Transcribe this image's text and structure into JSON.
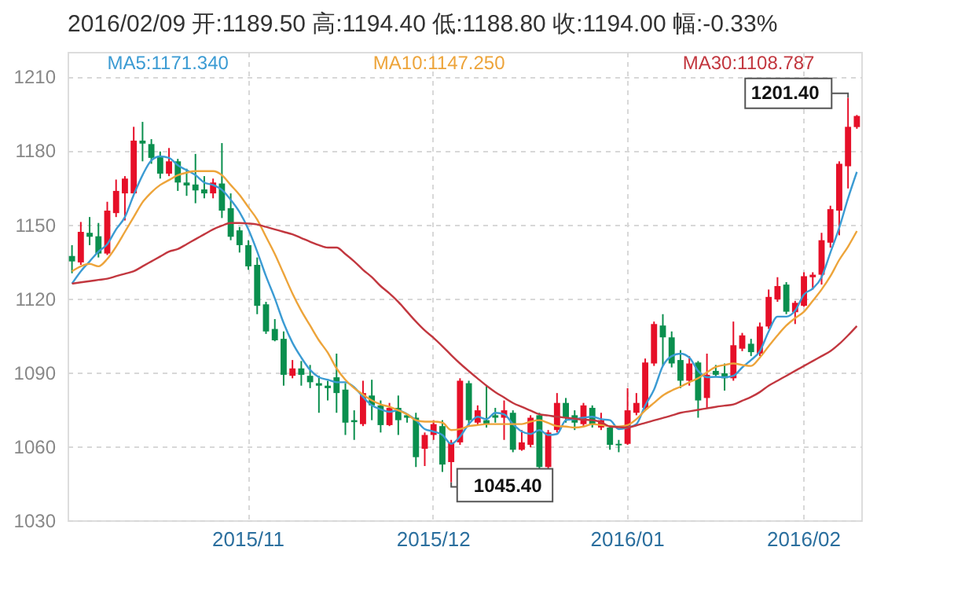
{
  "chart_data": {
    "type": "candlestick",
    "title": "2016/02/09 开:1189.50 高:1194.40 低:1188.80 收:1194.00 幅:-0.33%",
    "categories": [
      null,
      null,
      null,
      null,
      null,
      null,
      null,
      null,
      null,
      null,
      null,
      null,
      null,
      null,
      null,
      null,
      null,
      null,
      null,
      null,
      "2015/11",
      null,
      null,
      null,
      null,
      null,
      null,
      null,
      null,
      null,
      null,
      null,
      null,
      null,
      null,
      null,
      null,
      null,
      null,
      null,
      null,
      "2015/12",
      null,
      null,
      null,
      null,
      null,
      null,
      null,
      null,
      null,
      null,
      null,
      null,
      null,
      null,
      null,
      null,
      null,
      null,
      null,
      null,
      null,
      "2016/01",
      null,
      null,
      null,
      null,
      null,
      null,
      null,
      null,
      null,
      null,
      null,
      null,
      null,
      null,
      null,
      null,
      null,
      null,
      null,
      "2016/02",
      null,
      null,
      null,
      null,
      null,
      null
    ],
    "ohlc": [
      [
        1137.2,
        1141.6,
        1130.2,
        1135.0
      ],
      [
        1134.6,
        1151.0,
        1133.6,
        1147.0
      ],
      [
        1146.6,
        1153.0,
        1141.6,
        1145.0
      ],
      [
        1145.2,
        1150.6,
        1136.6,
        1138.2
      ],
      [
        1138.2,
        1159.2,
        1137.6,
        1155.6
      ],
      [
        1154.6,
        1168.2,
        1153.0,
        1163.6
      ],
      [
        1162.6,
        1169.6,
        1151.6,
        1168.6
      ],
      [
        1162.6,
        1189.6,
        1162.6,
        1184.0
      ],
      [
        1184.0,
        1191.6,
        1175.6,
        1182.8
      ],
      [
        1182.6,
        1184.6,
        1174.6,
        1177.0
      ],
      [
        1177.6,
        1179.6,
        1168.6,
        1170.6
      ],
      [
        1170.6,
        1181.0,
        1169.6,
        1175.6
      ],
      [
        1175.6,
        1176.6,
        1163.6,
        1167.0
      ],
      [
        1167.0,
        1172.6,
        1161.6,
        1165.8
      ],
      [
        1166.2,
        1178.6,
        1158.6,
        1163.8
      ],
      [
        1164.2,
        1169.6,
        1160.6,
        1162.6
      ],
      [
        1162.6,
        1168.6,
        1160.6,
        1167.0
      ],
      [
        1166.6,
        1183.0,
        1152.6,
        1155.6
      ],
      [
        1156.6,
        1162.6,
        1143.6,
        1145.0
      ],
      [
        1147.6,
        1149.0,
        1138.6,
        1141.6
      ],
      [
        1141.6,
        1143.6,
        1131.6,
        1133.0
      ],
      [
        1133.6,
        1136.6,
        1113.6,
        1117.0
      ],
      [
        1117.6,
        1118.6,
        1105.6,
        1106.6
      ],
      [
        1107.6,
        1111.6,
        1102.6,
        1103.0
      ],
      [
        1103.6,
        1106.6,
        1084.6,
        1089.0
      ],
      [
        1088.6,
        1095.0,
        1087.6,
        1091.6
      ],
      [
        1091.6,
        1094.6,
        1084.6,
        1089.0
      ],
      [
        1088.6,
        1093.0,
        1083.6,
        1086.0
      ],
      [
        1085.6,
        1088.6,
        1073.6,
        1084.6
      ],
      [
        1084.6,
        1086.6,
        1078.6,
        1083.6
      ],
      [
        1088.0,
        1097.6,
        1073.6,
        1081.6
      ],
      [
        1083.0,
        1085.6,
        1064.6,
        1069.6
      ],
      [
        1070.6,
        1074.6,
        1062.6,
        1069.8
      ],
      [
        1069.0,
        1086.6,
        1068.2,
        1081.6
      ],
      [
        1080.6,
        1087.0,
        1070.6,
        1076.6
      ],
      [
        1076.6,
        1078.6,
        1065.6,
        1068.6
      ],
      [
        1068.6,
        1077.6,
        1068.2,
        1075.6
      ],
      [
        1075.6,
        1080.6,
        1064.6,
        1070.6
      ],
      [
        1072.6,
        1073.0,
        1069.6,
        1071.6
      ],
      [
        1071.6,
        1073.6,
        1051.6,
        1055.6
      ],
      [
        1059.0,
        1065.6,
        1052.0,
        1064.6
      ],
      [
        1064.6,
        1070.6,
        1062.6,
        1069.0
      ],
      [
        1068.2,
        1070.6,
        1049.6,
        1052.6
      ],
      [
        1053.6,
        1062.6,
        1045.4,
        1061.6
      ],
      [
        1061.6,
        1087.6,
        1060.6,
        1086.6
      ],
      [
        1085.6,
        1086.6,
        1068.6,
        1070.6
      ],
      [
        1069.6,
        1076.6,
        1068.6,
        1074.6
      ],
      [
        1070.6,
        1084.6,
        1067.6,
        1069.0
      ],
      [
        1072.6,
        1075.6,
        1069.6,
        1071.6
      ],
      [
        1071.6,
        1078.6,
        1062.6,
        1074.6
      ],
      [
        1073.6,
        1074.6,
        1057.6,
        1058.6
      ],
      [
        1058.6,
        1066.6,
        1058.2,
        1061.6
      ],
      [
        1060.6,
        1072.6,
        1059.6,
        1071.6
      ],
      [
        1072.6,
        1073.6,
        1050.6,
        1051.6
      ],
      [
        1051.6,
        1066.6,
        1050.6,
        1065.6
      ],
      [
        1066.6,
        1081.6,
        1065.6,
        1077.6
      ],
      [
        1077.6,
        1079.6,
        1069.6,
        1071.6
      ],
      [
        1072.6,
        1074.6,
        1066.6,
        1069.6
      ],
      [
        1069.0,
        1077.6,
        1068.2,
        1076.6
      ],
      [
        1075.6,
        1076.6,
        1067.6,
        1068.6
      ],
      [
        1067.6,
        1073.6,
        1066.6,
        1070.6
      ],
      [
        1067.6,
        1068.6,
        1058.6,
        1060.6
      ],
      [
        1061.0,
        1062.6,
        1057.6,
        1060.4
      ],
      [
        1061.0,
        1083.6,
        1060.6,
        1074.6
      ],
      [
        1073.6,
        1081.6,
        1072.6,
        1077.6
      ],
      [
        1075.6,
        1095.6,
        1074.6,
        1094.0
      ],
      [
        1093.6,
        1110.6,
        1092.6,
        1109.6
      ],
      [
        1109.0,
        1113.6,
        1092.6,
        1104.2
      ],
      [
        1104.2,
        1106.6,
        1092.0,
        1093.6
      ],
      [
        1095.0,
        1099.0,
        1083.6,
        1086.6
      ],
      [
        1086.6,
        1096.6,
        1084.6,
        1093.6
      ],
      [
        1094.0,
        1094.6,
        1071.6,
        1078.6
      ],
      [
        1079.6,
        1097.6,
        1075.6,
        1089.0
      ],
      [
        1090.6,
        1093.0,
        1088.0,
        1089.0
      ],
      [
        1089.6,
        1093.6,
        1082.6,
        1087.6
      ],
      [
        1087.6,
        1110.6,
        1086.6,
        1101.0
      ],
      [
        1099.6,
        1106.0,
        1098.6,
        1105.0
      ],
      [
        1101.6,
        1103.6,
        1096.6,
        1098.2
      ],
      [
        1097.6,
        1110.2,
        1096.6,
        1108.6
      ],
      [
        1108.6,
        1123.6,
        1107.6,
        1120.6
      ],
      [
        1119.6,
        1128.6,
        1118.6,
        1125.0
      ],
      [
        1125.6,
        1126.6,
        1113.6,
        1114.6
      ],
      [
        1114.4,
        1119.0,
        1109.6,
        1118.2
      ],
      [
        1117.0,
        1130.6,
        1116.6,
        1129.0
      ],
      [
        1128.6,
        1130.6,
        1123.6,
        1129.6
      ],
      [
        1129.6,
        1146.6,
        1125.6,
        1143.6
      ],
      [
        1142.6,
        1157.6,
        1140.6,
        1156.2
      ],
      [
        1155.6,
        1175.6,
        1145.6,
        1174.6
      ],
      [
        1173.6,
        1201.4,
        1164.6,
        1189.6
      ],
      [
        1189.5,
        1194.4,
        1188.8,
        1194.0
      ]
    ],
    "colors": [
      "#0a8f4e",
      "#e60f28",
      "#0a8f4e",
      "#0a8f4e",
      "#e60f28",
      "#e60f28",
      "#e60f28",
      "#e60f28",
      "#0a8f4e",
      "#0a8f4e",
      "#0a8f4e",
      "#e60f28",
      "#0a8f4e",
      "#0a8f4e",
      "#0a8f4e",
      "#0a8f4e",
      "#e60f28",
      "#0a8f4e",
      "#0a8f4e",
      "#0a8f4e",
      "#0a8f4e",
      "#0a8f4e",
      "#0a8f4e",
      "#0a8f4e",
      "#0a8f4e",
      "#e60f28",
      "#0a8f4e",
      "#0a8f4e",
      "#0a8f4e",
      "#0a8f4e",
      "#0a8f4e",
      "#0a8f4e",
      "#0a8f4e",
      "#e60f28",
      "#0a8f4e",
      "#0a8f4e",
      "#e60f28",
      "#0a8f4e",
      "#0a8f4e",
      "#0a8f4e",
      "#e60f28",
      "#e60f28",
      "#0a8f4e",
      "#e60f28",
      "#e60f28",
      "#0a8f4e",
      "#e60f28",
      "#0a8f4e",
      "#0a8f4e",
      "#e60f28",
      "#0a8f4e",
      "#e60f28",
      "#e60f28",
      "#0a8f4e",
      "#e60f28",
      "#e60f28",
      "#0a8f4e",
      "#0a8f4e",
      "#e60f28",
      "#0a8f4e",
      "#e60f28",
      "#0a8f4e",
      "#0a8f4e",
      "#e60f28",
      "#e60f28",
      "#e60f28",
      "#e60f28",
      "#0a8f4e",
      "#0a8f4e",
      "#0a8f4e",
      "#e60f28",
      "#0a8f4e",
      "#e60f28",
      "#0a8f4e",
      "#0a8f4e",
      "#e60f28",
      "#e60f28",
      "#0a8f4e",
      "#e60f28",
      "#e60f28",
      "#e60f28",
      "#0a8f4e",
      "#e60f28",
      "#e60f28",
      "#e60f28",
      "#e60f28",
      "#e60f28",
      "#e60f28",
      "#e60f28",
      "#e60f28"
    ],
    "series": [
      {
        "name": "MA5:1171.340",
        "type": "line",
        "color": "#3b9bd3",
        "values": [
          1126,
          1131,
          1135,
          1139,
          1142,
          1148,
          1153,
          1162,
          1170,
          1176,
          1177.6,
          1177,
          1174,
          1172,
          1170,
          1167,
          1166,
          1164,
          1160,
          1155,
          1148,
          1139,
          1129,
          1120,
          1110,
          1102,
          1096,
          1091,
          1088,
          1087,
          1086,
          1086,
          1084,
          1080,
          1076.6,
          1075,
          1074,
          1074.6,
          1073,
          1070.6,
          1067,
          1066,
          1064.6,
          1061,
          1064,
          1069,
          1072,
          1071,
          1073.6,
          1073,
          1069,
          1066,
          1065,
          1066.6,
          1064.6,
          1065,
          1070.6,
          1071,
          1071.6,
          1072,
          1071,
          1070.6,
          1067,
          1067.6,
          1069,
          1076.6,
          1083,
          1092.6,
          1096.6,
          1097.6,
          1096,
          1090.6,
          1088,
          1088.2,
          1088,
          1088.6,
          1092,
          1095,
          1098.6,
          1106.6,
          1112.6,
          1112.6,
          1115,
          1121.6,
          1124,
          1128.6,
          1138.6,
          1148.6,
          1160.6,
          1171.3
        ]
      },
      {
        "name": "MA10:1147.250",
        "type": "line",
        "color": "#eda43a",
        "values": [
          1131,
          1133,
          1134,
          1133,
          1136,
          1141,
          1147,
          1153,
          1159,
          1163,
          1166,
          1168,
          1170,
          1171,
          1171.6,
          1171.6,
          1171.6,
          1170,
          1166,
          1162,
          1157,
          1152,
          1145,
          1138,
          1130,
          1122,
          1115,
          1109,
          1103,
          1098,
          1091.6,
          1087,
          1083.6,
          1081,
          1078.6,
          1077,
          1076,
          1074.6,
          1073,
          1070.6,
          1070,
          1070,
          1069.6,
          1066.6,
          1067,
          1068.2,
          1068.6,
          1069,
          1069,
          1069,
          1069,
          1069,
          1070,
          1070.6,
          1069.5,
          1068.2,
          1068,
          1067.6,
          1068,
          1069,
          1068.6,
          1068.2,
          1068,
          1068.6,
          1071,
          1074.6,
          1077.6,
          1080.6,
          1082.6,
          1084.2,
          1086,
          1087.6,
          1090,
          1092.2,
          1093,
          1093.6,
          1093,
          1092.6,
          1096,
          1100.6,
          1105,
          1109,
          1112,
          1114.6,
          1119,
          1123.6,
          1129,
          1135.6,
          1141,
          1147.3
        ]
      },
      {
        "name": "MA30:1108.787",
        "type": "line",
        "color": "#c2373f",
        "values": [
          1126,
          1126.5,
          1127,
          1127.5,
          1128,
          1129,
          1130,
          1131,
          1133,
          1135,
          1137,
          1139,
          1140,
          1142,
          1144,
          1146,
          1148,
          1149.5,
          1150.6,
          1150.6,
          1150.4,
          1150,
          1149,
          1148,
          1147,
          1146,
          1144.5,
          1143,
          1141.6,
          1140.6,
          1140.6,
          1138,
          1135,
          1131.6,
          1128.6,
          1125,
          1122,
          1118.6,
          1114.6,
          1110.6,
          1107,
          1104,
          1100.6,
          1097,
          1093.6,
          1090.5,
          1087.5,
          1084.6,
          1082,
          1079.8,
          1077.6,
          1076,
          1074.5,
          1073,
          1072.5,
          1072,
          1071.6,
          1071.2,
          1070.8,
          1070.6,
          1069.8,
          1068,
          1067.8,
          1067.6,
          1068.5,
          1069.5,
          1070.5,
          1071.5,
          1072.5,
          1073.6,
          1074.2,
          1074.8,
          1075.4,
          1076,
          1076.5,
          1077,
          1078.5,
          1080,
          1082,
          1084.6,
          1086.6,
          1088.6,
          1090.6,
          1092.6,
          1094.6,
          1096.6,
          1098.6,
          1101.5,
          1105,
          1108.8
        ]
      }
    ],
    "annotations": [
      "1201.40",
      "1045.40"
    ],
    "ylim": [
      1030,
      1220
    ],
    "yticks": [
      1030,
      1060,
      1090,
      1120,
      1150,
      1180,
      1210
    ],
    "grid": true,
    "legend": "top"
  }
}
